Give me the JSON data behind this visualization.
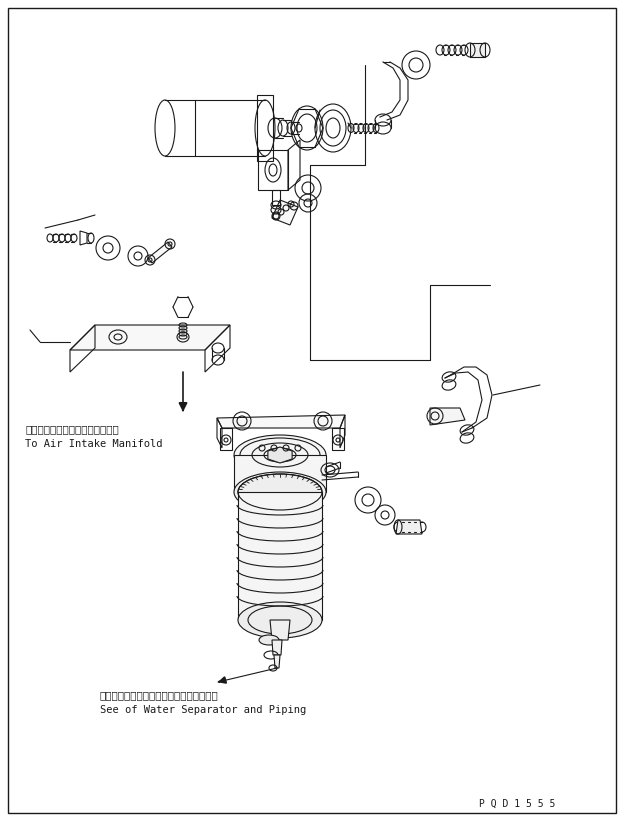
{
  "bg_color": "#ffffff",
  "lc": "#1a1a1a",
  "lw": 0.8,
  "fig_width": 6.24,
  "fig_height": 8.21,
  "dpi": 100,
  "label1_jp": "エアーインテークマニホールドヘ",
  "label1_en": "To Air Intake Manifold",
  "label2_jp": "ウォータセパレータおよびパイピング参照",
  "label2_en": "See of Water Separator and Piping",
  "part_code": "P Q D 1 5 5 5"
}
